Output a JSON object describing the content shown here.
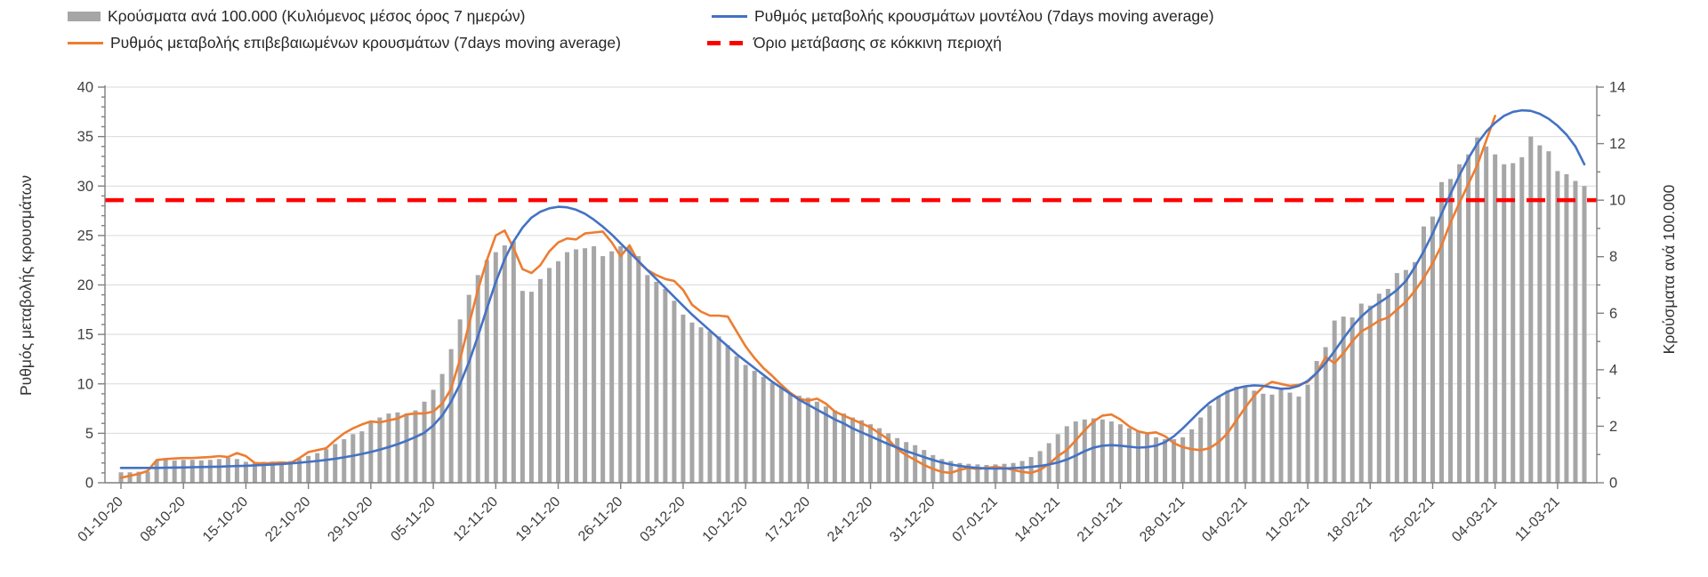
{
  "legend": {
    "bars": "Κρούσματα ανά 100.000 (Κυλιόμενος μέσος όρος 7 ημερών)",
    "confirmed": "Ρυθμός μεταβολής επιβεβαιωμένων κρουσμάτων (7days moving average)",
    "model": "Ρυθμός μεταβολής κρουσμάτων μοντέλου (7days moving average)",
    "threshold": "Όριο μετάβασης σε κόκκινη περιοχή"
  },
  "axes": {
    "left_title": "Ρυθμός μεταβολής κρουσμάτων",
    "right_title": "Κρούσματα ανά 100.000",
    "left_ticks": [
      0,
      5,
      10,
      15,
      20,
      25,
      30,
      35,
      40
    ],
    "right_ticks": [
      0,
      2,
      4,
      6,
      8,
      10,
      12,
      14
    ]
  },
  "colors": {
    "bar": "#a6a6a6",
    "model_line": "#4472c4",
    "confirmed_line": "#ed7d31",
    "threshold_line": "#ff0000",
    "grid": "#d9d9d9",
    "axis": "#7f7f7f",
    "tick_text": "#404040"
  },
  "chart_data": {
    "type": "bar",
    "note": "daily data 01-10-2020 to mid-03-2021; bars on right axis (cases per 100.000), lines on left axis (rate of change); weekly x tick labels",
    "left_range": [
      0,
      40
    ],
    "right_range": [
      0,
      14
    ],
    "grid": "horizontal-only",
    "legend_position": "top",
    "x_tick_interval_days": 7,
    "x_labels": [
      "01-10-20",
      "08-10-20",
      "15-10-20",
      "22-10-20",
      "29-10-20",
      "05-11-20",
      "12-11-20",
      "19-11-20",
      "26-11-20",
      "03-12-20",
      "10-12-20",
      "17-12-20",
      "24-12-20",
      "31-12-20",
      "07-01-21",
      "14-01-21",
      "21-01-21",
      "28-01-21",
      "04-02-21",
      "11-02-21",
      "18-02-21",
      "25-02-21",
      "04-03-21",
      "11-03-21"
    ],
    "threshold_value_right_axis": 10,
    "series": [
      {
        "name": "Κρούσματα ανά 100.000 (Κυλιόμενος μέσος όρος 7 ημερών)",
        "type": "bar",
        "axis": "right",
        "values": [
          0.37,
          0.37,
          0.39,
          0.39,
          0.77,
          0.81,
          0.79,
          0.81,
          0.81,
          0.79,
          0.81,
          0.84,
          0.88,
          0.84,
          0.74,
          0.72,
          0.74,
          0.75,
          0.74,
          0.77,
          0.84,
          0.95,
          1.05,
          1.19,
          1.37,
          1.54,
          1.72,
          1.82,
          2.14,
          2.31,
          2.45,
          2.49,
          2.45,
          2.56,
          2.87,
          3.29,
          3.85,
          4.73,
          5.78,
          6.65,
          7.35,
          7.88,
          8.16,
          8.4,
          8.54,
          6.79,
          6.76,
          7.21,
          7.6,
          7.84,
          8.16,
          8.26,
          8.3,
          8.37,
          8.02,
          8.19,
          8.37,
          8.33,
          8.02,
          7.35,
          7.11,
          6.86,
          6.44,
          5.95,
          5.67,
          5.5,
          5.36,
          5.18,
          4.87,
          4.48,
          4.17,
          3.96,
          3.75,
          3.54,
          3.36,
          3.19,
          3.08,
          3.01,
          2.87,
          2.7,
          2.56,
          2.45,
          2.31,
          2.21,
          2.07,
          1.93,
          1.75,
          1.58,
          1.44,
          1.33,
          1.16,
          0.98,
          0.84,
          0.77,
          0.7,
          0.67,
          0.65,
          0.63,
          0.65,
          0.67,
          0.7,
          0.77,
          0.91,
          1.12,
          1.4,
          1.72,
          2.0,
          2.17,
          2.24,
          2.28,
          2.24,
          2.17,
          2.07,
          1.93,
          1.82,
          1.72,
          1.61,
          1.54,
          1.54,
          1.61,
          1.89,
          2.31,
          2.73,
          3.05,
          3.26,
          3.4,
          3.43,
          3.26,
          3.15,
          3.12,
          3.29,
          3.19,
          3.05,
          3.47,
          4.31,
          4.8,
          5.74,
          5.88,
          5.85,
          6.34,
          6.27,
          6.69,
          6.86,
          7.42,
          7.53,
          7.81,
          9.07,
          9.42,
          10.64,
          10.75,
          11.27,
          11.62,
          12.22,
          11.9,
          11.62,
          11.27,
          11.31,
          11.52,
          12.25,
          11.94,
          11.73,
          11.03,
          10.92,
          10.68,
          10.5
        ]
      },
      {
        "name": "Ρυθμός μεταβολής επιβεβαιωμένων κρουσμάτων (7days moving average)",
        "type": "line",
        "axis": "left",
        "values": [
          0.5,
          0.7,
          0.9,
          1.2,
          2.3,
          2.4,
          2.45,
          2.5,
          2.5,
          2.55,
          2.6,
          2.7,
          2.6,
          3.0,
          2.7,
          2.0,
          1.95,
          2.0,
          2.05,
          2.0,
          2.5,
          3.1,
          3.3,
          3.5,
          4.3,
          5.0,
          5.5,
          5.9,
          6.2,
          6.1,
          6.3,
          6.5,
          6.9,
          7.0,
          7.0,
          7.2,
          8.0,
          9.5,
          12.5,
          16.0,
          19.5,
          22.5,
          25.0,
          25.5,
          23.7,
          21.6,
          21.2,
          22.0,
          23.4,
          24.3,
          24.7,
          24.6,
          25.2,
          25.3,
          25.4,
          24.3,
          22.9,
          24.0,
          22.3,
          21.5,
          21.0,
          20.6,
          20.4,
          19.5,
          18.0,
          17.3,
          16.9,
          16.9,
          16.8,
          15.3,
          13.8,
          12.6,
          11.6,
          10.8,
          9.9,
          9.1,
          8.5,
          8.3,
          8.5,
          8.0,
          7.2,
          6.8,
          6.4,
          6.0,
          5.6,
          5.0,
          4.4,
          3.4,
          2.8,
          2.3,
          1.8,
          1.4,
          1.1,
          1.0,
          1.3,
          1.5,
          1.4,
          1.5,
          1.6,
          1.5,
          1.3,
          1.1,
          1.0,
          1.3,
          1.9,
          2.7,
          3.3,
          4.3,
          5.3,
          6.2,
          6.8,
          6.9,
          6.4,
          5.7,
          5.2,
          5.0,
          5.1,
          4.7,
          4.0,
          3.6,
          3.4,
          3.3,
          3.5,
          4.1,
          5.0,
          6.3,
          7.6,
          8.8,
          9.7,
          10.2,
          10.0,
          9.8,
          9.9,
          10.2,
          11.1,
          12.7,
          12.1,
          13.1,
          14.3,
          15.3,
          15.8,
          16.4,
          16.7,
          17.5,
          18.3,
          19.4,
          20.7,
          22.2,
          24.0,
          26.3,
          28.3,
          30.2,
          32.1,
          34.6,
          37.1,
          null,
          null,
          null,
          null,
          null,
          null,
          null,
          null,
          null,
          null
        ]
      },
      {
        "name": "Ρυθμός μεταβολής κρουσμάτων μοντέλου (7days moving average)",
        "type": "line",
        "axis": "left",
        "values": [
          1.5,
          1.5,
          1.5,
          1.5,
          1.5,
          1.52,
          1.54,
          1.55,
          1.57,
          1.59,
          1.61,
          1.63,
          1.66,
          1.69,
          1.72,
          1.76,
          1.8,
          1.85,
          1.9,
          1.96,
          2.03,
          2.11,
          2.2,
          2.31,
          2.43,
          2.57,
          2.73,
          2.91,
          3.11,
          3.34,
          3.6,
          3.9,
          4.24,
          4.62,
          5.05,
          5.8,
          6.8,
          8.2,
          10.0,
          12.2,
          14.8,
          17.6,
          20.3,
          22.6,
          24.4,
          25.8,
          26.8,
          27.4,
          27.75,
          27.9,
          27.85,
          27.6,
          27.2,
          26.6,
          25.9,
          25.1,
          24.2,
          23.3,
          22.4,
          21.5,
          20.6,
          19.7,
          18.8,
          17.9,
          17.0,
          16.2,
          15.4,
          14.6,
          13.8,
          13.0,
          12.3,
          11.6,
          10.9,
          10.2,
          9.6,
          9.0,
          8.4,
          7.9,
          7.4,
          6.9,
          6.4,
          6.0,
          5.5,
          5.1,
          4.7,
          4.3,
          3.9,
          3.55,
          3.2,
          2.9,
          2.6,
          2.3,
          2.05,
          1.85,
          1.7,
          1.58,
          1.5,
          1.45,
          1.44,
          1.45,
          1.48,
          1.53,
          1.6,
          1.7,
          1.85,
          2.05,
          2.35,
          2.75,
          3.2,
          3.55,
          3.75,
          3.8,
          3.75,
          3.65,
          3.55,
          3.6,
          3.75,
          4.1,
          4.7,
          5.5,
          6.4,
          7.3,
          8.1,
          8.7,
          9.2,
          9.55,
          9.75,
          9.85,
          9.8,
          9.65,
          9.5,
          9.55,
          9.8,
          10.3,
          11.1,
          12.1,
          13.3,
          14.6,
          15.8,
          16.8,
          17.6,
          18.2,
          18.8,
          19.5,
          20.4,
          21.8,
          23.4,
          25.2,
          27.2,
          29.2,
          31.1,
          32.8,
          34.3,
          35.5,
          36.4,
          37.1,
          37.5,
          37.65,
          37.6,
          37.3,
          36.8,
          36.1,
          35.2,
          34.0,
          32.2
        ]
      },
      {
        "name": "Όριο μετάβασης σε κόκκινη περιοχή",
        "type": "threshold-line",
        "axis": "right",
        "value": 10
      }
    ]
  }
}
